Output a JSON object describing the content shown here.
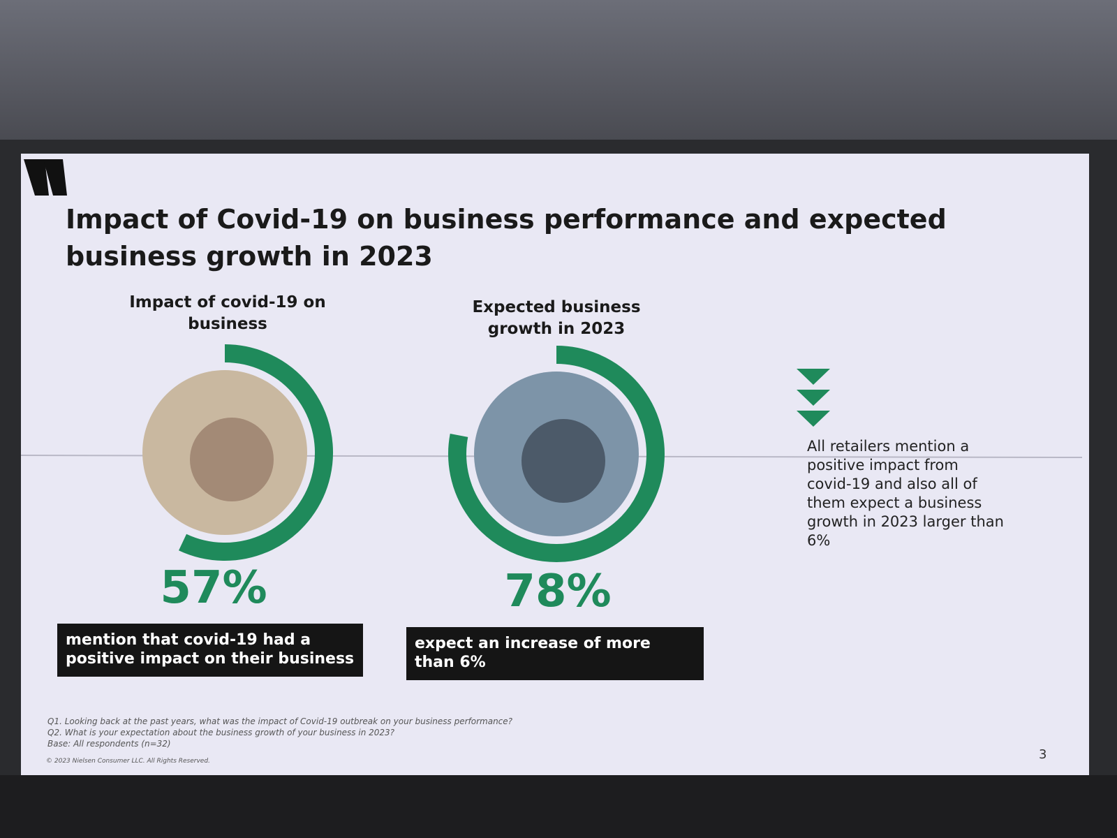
{
  "title": "Impact of Covid-19 on business performance and expected business growth in 2023",
  "chart_data": [
    {
      "type": "donut",
      "title": "Impact of covid-19 on business",
      "values": [
        57
      ],
      "value_labels": [
        "57%"
      ],
      "ylim": [
        0,
        100
      ],
      "color": "#1f8a5b",
      "caption": "mention that covid-19 had a positive impact on their business"
    },
    {
      "type": "donut",
      "title": "Expected business growth in 2023",
      "values": [
        78
      ],
      "value_labels": [
        "78%"
      ],
      "ylim": [
        0,
        100
      ],
      "color": "#1f8a5b",
      "caption": "expect an increase of more than 6%"
    }
  ],
  "note": "All retailers mention a positive impact from covid-19 and also all of them expect a business growth in 2023 larger than 6%",
  "footnotes": [
    "Q1. Looking back at the past years, what was the impact of Covid-19 outbreak on your business performance?",
    "Q2. What is your expectation about the business growth of your business in 2023?",
    "Base: All respondents (n=32)"
  ],
  "copyright": "© 2023 Nielsen Consumer LLC. All Rights Reserved.",
  "page_number": 3
}
